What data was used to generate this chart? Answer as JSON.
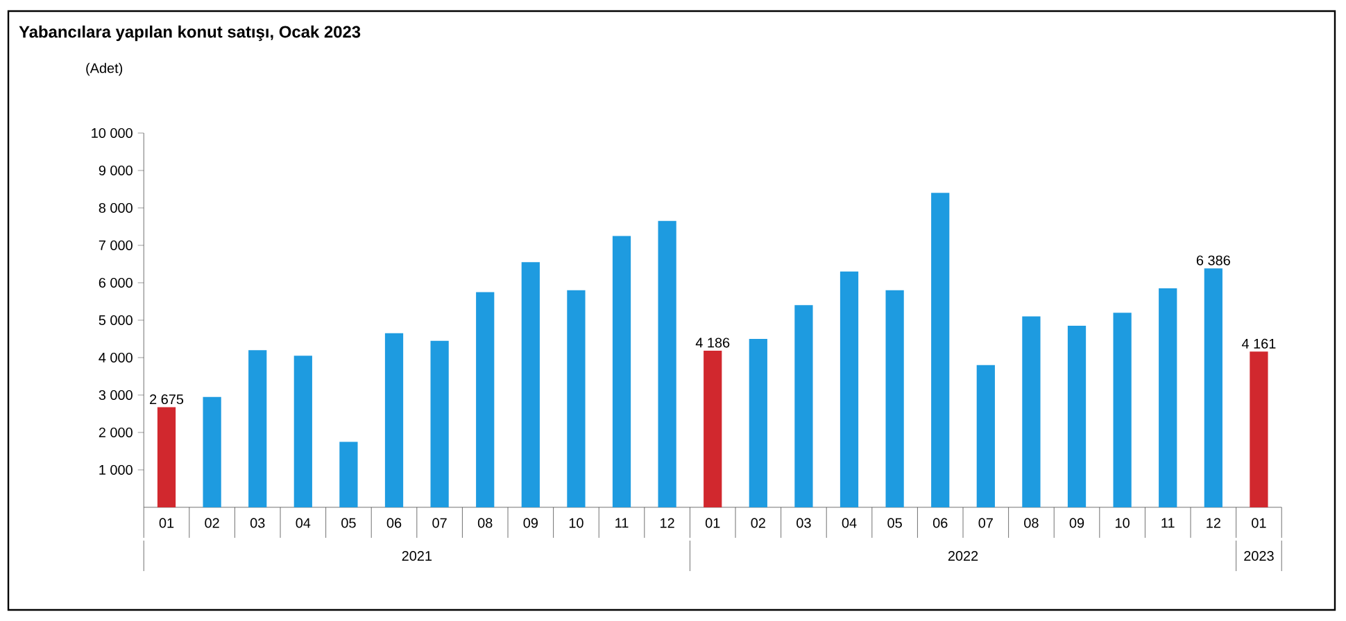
{
  "chart_data": {
    "type": "bar",
    "title": "Yabancılara yapılan konut satışı, Ocak 2023",
    "ylabel": "(Adet)",
    "categories": [
      "01",
      "02",
      "03",
      "04",
      "05",
      "06",
      "07",
      "08",
      "09",
      "10",
      "11",
      "12",
      "01",
      "02",
      "03",
      "04",
      "05",
      "06",
      "07",
      "08",
      "09",
      "10",
      "11",
      "12",
      "01"
    ],
    "values": [
      2675,
      2950,
      4200,
      4050,
      1750,
      4650,
      4450,
      5750,
      6550,
      5800,
      7250,
      7650,
      4186,
      4500,
      5400,
      6300,
      5800,
      8400,
      3800,
      5100,
      4850,
      5200,
      5850,
      6386,
      4161
    ],
    "colors": [
      "#d1282e",
      "#1e9be0",
      "#1e9be0",
      "#1e9be0",
      "#1e9be0",
      "#1e9be0",
      "#1e9be0",
      "#1e9be0",
      "#1e9be0",
      "#1e9be0",
      "#1e9be0",
      "#1e9be0",
      "#d1282e",
      "#1e9be0",
      "#1e9be0",
      "#1e9be0",
      "#1e9be0",
      "#1e9be0",
      "#1e9be0",
      "#1e9be0",
      "#1e9be0",
      "#1e9be0",
      "#1e9be0",
      "#1e9be0",
      "#d1282e"
    ],
    "value_labels": [
      "2 675",
      null,
      null,
      null,
      null,
      null,
      null,
      null,
      null,
      null,
      null,
      null,
      "4 186",
      null,
      null,
      null,
      null,
      null,
      null,
      null,
      null,
      null,
      null,
      "6 386",
      "4 161"
    ],
    "ylim": [
      0,
      10000
    ],
    "yticks": [
      {
        "value": 1000,
        "label": "1 000"
      },
      {
        "value": 2000,
        "label": "2 000"
      },
      {
        "value": 3000,
        "label": "3 000"
      },
      {
        "value": 4000,
        "label": "4 000"
      },
      {
        "value": 5000,
        "label": "5 000"
      },
      {
        "value": 6000,
        "label": "6 000"
      },
      {
        "value": 7000,
        "label": "7 000"
      },
      {
        "value": 8000,
        "label": "8 000"
      },
      {
        "value": 9000,
        "label": "9 000"
      },
      {
        "value": 10000,
        "label": "10 000"
      }
    ],
    "annotations": [
      "2021",
      "2022",
      "2023"
    ]
  }
}
